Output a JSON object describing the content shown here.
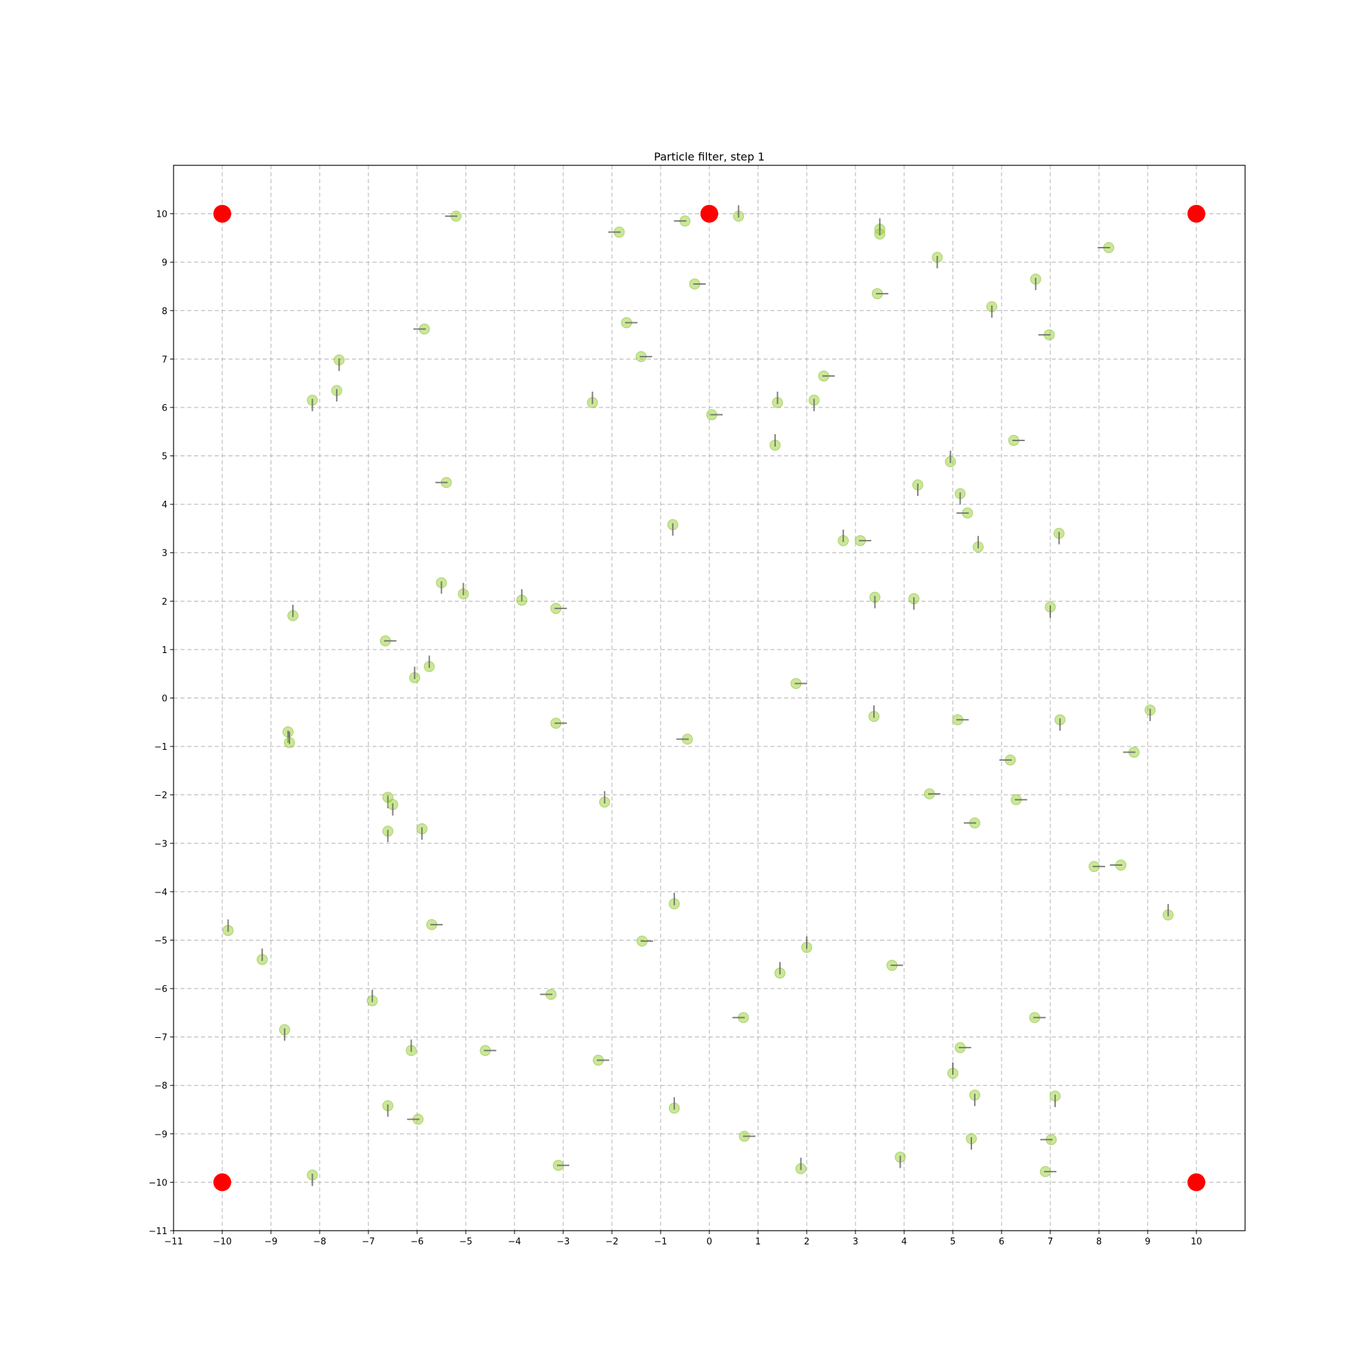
{
  "chart_data": {
    "type": "scatter",
    "title": "Particle filter, step 1",
    "xlabel": "",
    "ylabel": "",
    "xlim": [
      -11,
      11
    ],
    "ylim": [
      -11,
      11
    ],
    "xticks": [
      -11,
      -10,
      -9,
      -8,
      -7,
      -6,
      -5,
      -4,
      -3,
      -2,
      -1,
      0,
      1,
      2,
      3,
      4,
      5,
      6,
      7,
      8,
      9,
      10
    ],
    "yticks": [
      -11,
      -10,
      -9,
      -8,
      -7,
      -6,
      -5,
      -4,
      -3,
      -2,
      -1,
      0,
      1,
      2,
      3,
      4,
      5,
      6,
      7,
      8,
      9,
      10
    ],
    "grid": true,
    "colors": {
      "particle": "#9acd32",
      "landmark": "#ff0000",
      "heading": "#666666"
    },
    "landmarks": [
      {
        "x": -10,
        "y": 10
      },
      {
        "x": 0,
        "y": 10
      },
      {
        "x": 10,
        "y": 10
      },
      {
        "x": -10,
        "y": -10
      },
      {
        "x": 10,
        "y": -10
      }
    ],
    "particles": [
      {
        "x": -5.2,
        "y": 9.95,
        "dir": "W"
      },
      {
        "x": -1.85,
        "y": 9.62,
        "dir": "W"
      },
      {
        "x": -0.5,
        "y": 9.85,
        "dir": "W"
      },
      {
        "x": 0.6,
        "y": 9.95,
        "dir": "N"
      },
      {
        "x": 3.5,
        "y": 9.68,
        "dir": "N"
      },
      {
        "x": 3.5,
        "y": 9.58,
        "dir": "N"
      },
      {
        "x": 8.2,
        "y": 9.3,
        "dir": "W"
      },
      {
        "x": 4.68,
        "y": 9.1,
        "dir": "S"
      },
      {
        "x": 6.7,
        "y": 8.65,
        "dir": "S"
      },
      {
        "x": -0.3,
        "y": 8.55,
        "dir": "E"
      },
      {
        "x": 3.45,
        "y": 8.35,
        "dir": "E"
      },
      {
        "x": 5.8,
        "y": 8.08,
        "dir": "S"
      },
      {
        "x": -1.7,
        "y": 7.75,
        "dir": "E"
      },
      {
        "x": -5.85,
        "y": 7.62,
        "dir": "W"
      },
      {
        "x": 6.98,
        "y": 7.5,
        "dir": "W"
      },
      {
        "x": -1.4,
        "y": 7.05,
        "dir": "E"
      },
      {
        "x": -7.6,
        "y": 6.98,
        "dir": "S"
      },
      {
        "x": 2.35,
        "y": 6.65,
        "dir": "E"
      },
      {
        "x": -7.65,
        "y": 6.35,
        "dir": "S"
      },
      {
        "x": -8.15,
        "y": 6.15,
        "dir": "S"
      },
      {
        "x": -2.4,
        "y": 6.1,
        "dir": "N"
      },
      {
        "x": 1.4,
        "y": 6.1,
        "dir": "N"
      },
      {
        "x": 2.15,
        "y": 6.15,
        "dir": "S"
      },
      {
        "x": 0.05,
        "y": 5.85,
        "dir": "E"
      },
      {
        "x": 6.25,
        "y": 5.32,
        "dir": "E"
      },
      {
        "x": 1.35,
        "y": 5.22,
        "dir": "N"
      },
      {
        "x": 4.95,
        "y": 4.88,
        "dir": "N"
      },
      {
        "x": -5.4,
        "y": 4.45,
        "dir": "W"
      },
      {
        "x": 4.28,
        "y": 4.4,
        "dir": "S"
      },
      {
        "x": 5.15,
        "y": 4.22,
        "dir": "S"
      },
      {
        "x": 5.3,
        "y": 3.82,
        "dir": "W"
      },
      {
        "x": -0.75,
        "y": 3.58,
        "dir": "S"
      },
      {
        "x": 7.18,
        "y": 3.4,
        "dir": "S"
      },
      {
        "x": 2.75,
        "y": 3.25,
        "dir": "N"
      },
      {
        "x": 3.1,
        "y": 3.25,
        "dir": "E"
      },
      {
        "x": 5.52,
        "y": 3.12,
        "dir": "N"
      },
      {
        "x": -5.5,
        "y": 2.38,
        "dir": "S"
      },
      {
        "x": -5.05,
        "y": 2.15,
        "dir": "N"
      },
      {
        "x": -3.85,
        "y": 2.02,
        "dir": "N"
      },
      {
        "x": 3.4,
        "y": 2.08,
        "dir": "S"
      },
      {
        "x": 4.2,
        "y": 2.05,
        "dir": "S"
      },
      {
        "x": -3.15,
        "y": 1.85,
        "dir": "E"
      },
      {
        "x": 7.0,
        "y": 1.88,
        "dir": "S"
      },
      {
        "x": -8.55,
        "y": 1.7,
        "dir": "N"
      },
      {
        "x": -6.65,
        "y": 1.18,
        "dir": "E"
      },
      {
        "x": -5.75,
        "y": 0.65,
        "dir": "N"
      },
      {
        "x": -6.05,
        "y": 0.42,
        "dir": "N"
      },
      {
        "x": 1.78,
        "y": 0.3,
        "dir": "E"
      },
      {
        "x": 9.05,
        "y": -0.25,
        "dir": "S"
      },
      {
        "x": 3.38,
        "y": -0.38,
        "dir": "N"
      },
      {
        "x": 5.1,
        "y": -0.45,
        "dir": "E"
      },
      {
        "x": 7.2,
        "y": -0.45,
        "dir": "S"
      },
      {
        "x": -3.15,
        "y": -0.52,
        "dir": "E"
      },
      {
        "x": -8.65,
        "y": -0.7,
        "dir": "S"
      },
      {
        "x": -8.62,
        "y": -0.92,
        "dir": "N"
      },
      {
        "x": -0.45,
        "y": -0.85,
        "dir": "W"
      },
      {
        "x": 8.72,
        "y": -1.12,
        "dir": "W"
      },
      {
        "x": 6.18,
        "y": -1.28,
        "dir": "W"
      },
      {
        "x": 4.52,
        "y": -1.98,
        "dir": "E"
      },
      {
        "x": -6.6,
        "y": -2.05,
        "dir": "S"
      },
      {
        "x": 6.3,
        "y": -2.1,
        "dir": "E"
      },
      {
        "x": -6.5,
        "y": -2.2,
        "dir": "S"
      },
      {
        "x": -2.15,
        "y": -2.15,
        "dir": "N"
      },
      {
        "x": 5.45,
        "y": -2.58,
        "dir": "W"
      },
      {
        "x": -5.9,
        "y": -2.7,
        "dir": "S"
      },
      {
        "x": -6.6,
        "y": -2.75,
        "dir": "S"
      },
      {
        "x": 7.9,
        "y": -3.48,
        "dir": "E"
      },
      {
        "x": 8.45,
        "y": -3.45,
        "dir": "W"
      },
      {
        "x": -0.72,
        "y": -4.25,
        "dir": "N"
      },
      {
        "x": 9.42,
        "y": -4.48,
        "dir": "N"
      },
      {
        "x": -5.7,
        "y": -4.68,
        "dir": "E"
      },
      {
        "x": -9.88,
        "y": -4.8,
        "dir": "N"
      },
      {
        "x": -1.38,
        "y": -5.02,
        "dir": "E"
      },
      {
        "x": 2.0,
        "y": -5.15,
        "dir": "N"
      },
      {
        "x": -9.18,
        "y": -5.4,
        "dir": "N"
      },
      {
        "x": 3.75,
        "y": -5.52,
        "dir": "E"
      },
      {
        "x": 1.45,
        "y": -5.68,
        "dir": "N"
      },
      {
        "x": -3.25,
        "y": -6.12,
        "dir": "W"
      },
      {
        "x": -6.92,
        "y": -6.25,
        "dir": "N"
      },
      {
        "x": 0.7,
        "y": -6.6,
        "dir": "W"
      },
      {
        "x": 6.68,
        "y": -6.6,
        "dir": "E"
      },
      {
        "x": -8.72,
        "y": -6.85,
        "dir": "S"
      },
      {
        "x": 5.15,
        "y": -7.22,
        "dir": "E"
      },
      {
        "x": -6.12,
        "y": -7.28,
        "dir": "N"
      },
      {
        "x": -4.6,
        "y": -7.28,
        "dir": "E"
      },
      {
        "x": -2.28,
        "y": -7.48,
        "dir": "E"
      },
      {
        "x": 5.0,
        "y": -7.75,
        "dir": "N"
      },
      {
        "x": 5.45,
        "y": -8.2,
        "dir": "S"
      },
      {
        "x": 7.1,
        "y": -8.22,
        "dir": "S"
      },
      {
        "x": -6.6,
        "y": -8.42,
        "dir": "S"
      },
      {
        "x": -0.72,
        "y": -8.47,
        "dir": "N"
      },
      {
        "x": -5.98,
        "y": -8.7,
        "dir": "W"
      },
      {
        "x": 0.72,
        "y": -9.05,
        "dir": "E"
      },
      {
        "x": 5.38,
        "y": -9.1,
        "dir": "S"
      },
      {
        "x": 7.02,
        "y": -9.12,
        "dir": "W"
      },
      {
        "x": 3.92,
        "y": -9.48,
        "dir": "S"
      },
      {
        "x": -3.1,
        "y": -9.65,
        "dir": "E"
      },
      {
        "x": 1.88,
        "y": -9.72,
        "dir": "N"
      },
      {
        "x": 6.9,
        "y": -9.78,
        "dir": "E"
      },
      {
        "x": -8.15,
        "y": -9.85,
        "dir": "S"
      }
    ]
  }
}
